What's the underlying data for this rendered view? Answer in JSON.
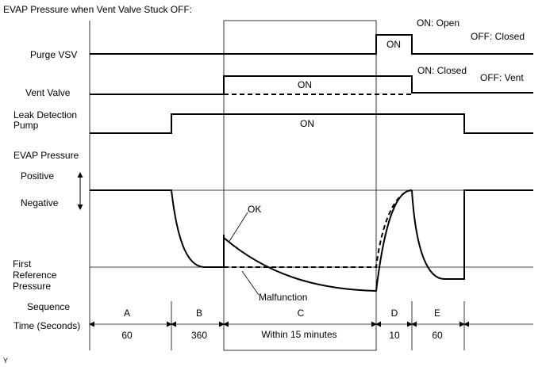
{
  "title": "EVAP Pressure when Vent Valve Stuck OFF:",
  "labels": {
    "purge_vsv": "Purge VSV",
    "vent_valve": "Vent Valve",
    "leak_pump_line1": "Leak Detection",
    "leak_pump_line2": "Pump",
    "evap_pressure": "EVAP Pressure",
    "positive": "Positive",
    "negative": "Negative",
    "first_ref_line1": "First",
    "first_ref_line2": "Reference",
    "first_ref_line3": "Pressure",
    "sequence": "Sequence",
    "time": "Time (Seconds)"
  },
  "notes": {
    "purge_on": "ON: Open",
    "purge_off": "OFF: Closed",
    "vent_on": "ON: Closed",
    "vent_off": "OFF: Vent"
  },
  "signal_text": {
    "purge_on": "ON",
    "vent_on": "ON",
    "pump_on": "ON"
  },
  "curve_labels": {
    "ok": "OK",
    "malfunction": "Malfunction"
  },
  "sequences": [
    {
      "letter": "A",
      "time": "60"
    },
    {
      "letter": "B",
      "time": "360"
    },
    {
      "letter": "C",
      "time": "Within 15 minutes"
    },
    {
      "letter": "D",
      "time": "10"
    },
    {
      "letter": "E",
      "time": "60"
    }
  ],
  "corner_mark": "Y"
}
